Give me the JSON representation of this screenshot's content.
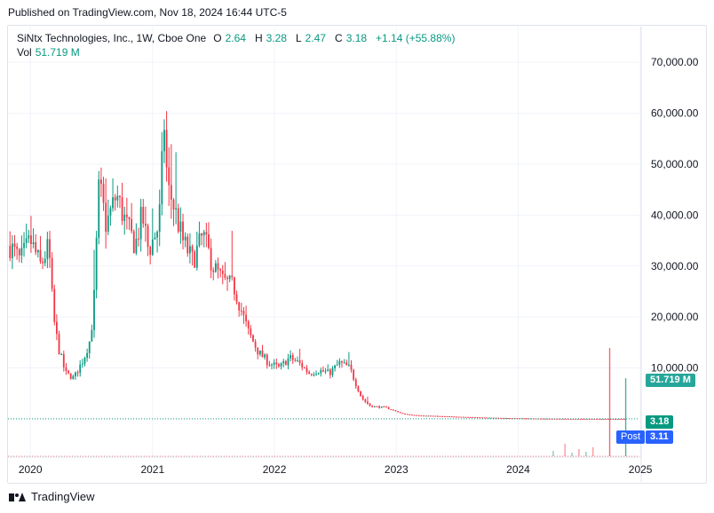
{
  "published": "Published on TradingView.com, Nov 18, 2024 16:44 UTC-5",
  "legend": {
    "title": "SiNtx Technologies, Inc., 1W, Cboe One",
    "o_label": "O",
    "o_value": "2.64",
    "h_label": "H",
    "h_value": "3.28",
    "l_label": "L",
    "l_value": "2.47",
    "c_label": "C",
    "c_value": "3.18",
    "change": "+1.14 (+55.88%)",
    "vol_label": "Vol",
    "vol_value": "51.719 M"
  },
  "tags": {
    "volume": "51.719 M",
    "last_price": "3.18",
    "post_label": "Post",
    "post_price": "3.11"
  },
  "footer": {
    "brand": "TradingView"
  },
  "colors": {
    "up": "#089981",
    "down": "#f23645",
    "post": "#2962ff",
    "grid": "#f0f3fa",
    "text": "#131722"
  },
  "chart_data": {
    "type": "candlestick",
    "title": "SiNtx Technologies, Inc., 1W, Cboe One",
    "interval": "1W",
    "y_axis": {
      "ticks": [
        10000,
        20000,
        30000,
        40000,
        50000,
        60000,
        70000
      ],
      "tick_labels": [
        "10,000.00",
        "20,000.00",
        "30,000.00",
        "40,000.00",
        "50,000.00",
        "60,000.00",
        "70,000.00"
      ],
      "ylim": [
        -7500,
        77000
      ],
      "position": "right"
    },
    "x_axis": {
      "ticks": [
        "2020",
        "2021",
        "2022",
        "2023",
        "2024",
        "2025"
      ],
      "tick_dates": [
        "2020-01-01",
        "2021-01-01",
        "2022-01-01",
        "2023-01-01",
        "2024-01-01",
        "2025-01-01"
      ],
      "range": [
        "2019-10-26",
        "2024-12-29"
      ]
    },
    "grid": true,
    "last_close": 3.18,
    "post_market": 3.11,
    "price_path": [
      [
        "2019-11-01",
        34000
      ],
      [
        "2019-12-01",
        31000
      ],
      [
        "2020-01-01",
        35000
      ],
      [
        "2020-02-01",
        30000
      ],
      [
        "2020-02-25",
        34000
      ],
      [
        "2020-03-10",
        20000
      ],
      [
        "2020-03-25",
        14000
      ],
      [
        "2020-04-15",
        9000
      ],
      [
        "2020-05-10",
        8000
      ],
      [
        "2020-06-10",
        12000
      ],
      [
        "2020-06-30",
        16000
      ],
      [
        "2020-07-10",
        24000
      ],
      [
        "2020-07-25",
        46000
      ],
      [
        "2020-08-15",
        38000
      ],
      [
        "2020-09-15",
        44000
      ],
      [
        "2020-10-15",
        38000
      ],
      [
        "2020-11-10",
        34000
      ],
      [
        "2020-12-01",
        40000
      ],
      [
        "2020-12-20",
        33000
      ],
      [
        "2021-01-20",
        38000
      ],
      [
        "2021-02-05",
        58000
      ],
      [
        "2021-02-15",
        45000
      ],
      [
        "2021-03-01",
        43000
      ],
      [
        "2021-04-01",
        35000
      ],
      [
        "2021-05-01",
        31000
      ],
      [
        "2021-06-01",
        36000
      ],
      [
        "2021-07-01",
        30000
      ],
      [
        "2021-08-01",
        27000
      ],
      [
        "2021-09-01",
        26000
      ],
      [
        "2021-10-15",
        17000
      ],
      [
        "2021-11-15",
        13000
      ],
      [
        "2021-12-15",
        11000
      ],
      [
        "2022-01-15",
        10000
      ],
      [
        "2022-02-15",
        12000
      ],
      [
        "2022-03-15",
        11000
      ],
      [
        "2022-04-15",
        9000
      ],
      [
        "2022-05-15",
        9500
      ],
      [
        "2022-06-15",
        9000
      ],
      [
        "2022-07-15",
        11000
      ],
      [
        "2022-08-15",
        10000
      ],
      [
        "2022-09-01",
        7000
      ],
      [
        "2022-09-20",
        4000
      ],
      [
        "2022-10-15",
        2500
      ],
      [
        "2022-12-01",
        2200
      ],
      [
        "2023-01-20",
        1000
      ],
      [
        "2023-03-01",
        700
      ],
      [
        "2023-06-01",
        500
      ],
      [
        "2023-09-01",
        300
      ],
      [
        "2023-12-01",
        150
      ],
      [
        "2024-04-01",
        40
      ],
      [
        "2024-08-01",
        10
      ],
      [
        "2024-11-18",
        3.18
      ]
    ],
    "volume_highlights": [
      {
        "date": "2024-10-01",
        "direction": "down",
        "relative_height": 1.0
      },
      {
        "date": "2024-11-18",
        "direction": "up",
        "value_label": "51.719 M",
        "relative_height": 0.72
      }
    ]
  }
}
